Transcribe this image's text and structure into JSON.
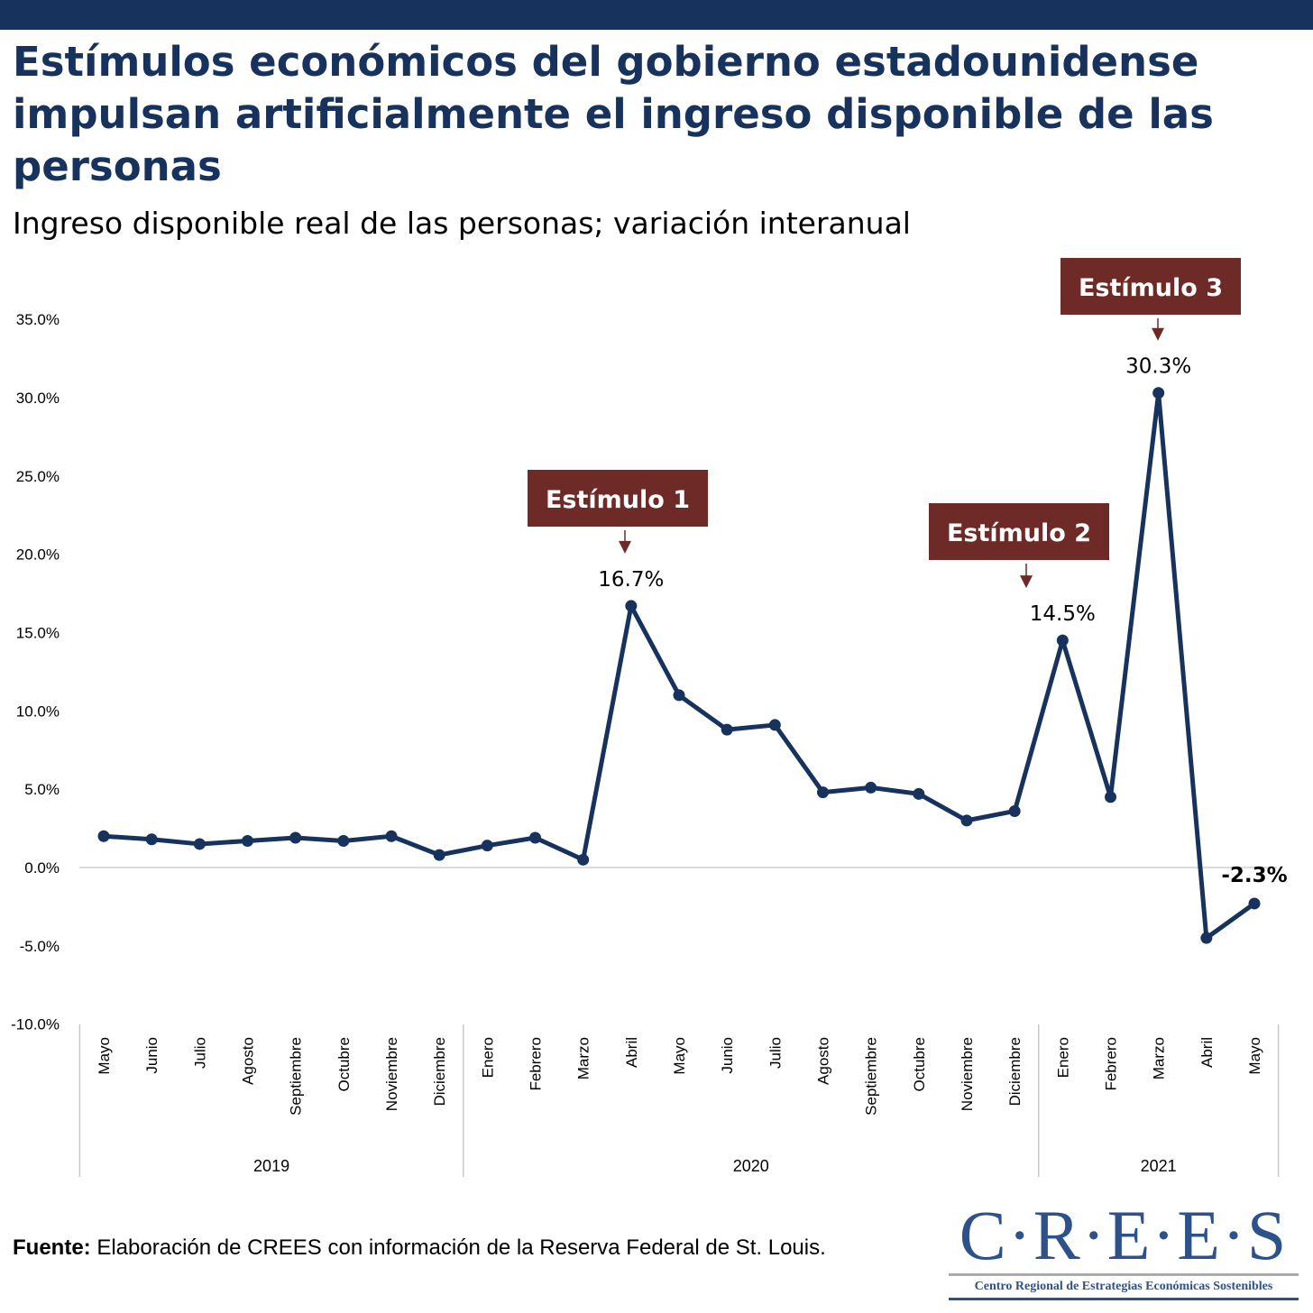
{
  "header": {
    "title": "Estímulos económicos del gobierno estadounidense impulsan artificialmente el ingreso disponible de las personas",
    "subtitle": "Ingreso disponible real de las personas; variación interanual"
  },
  "chart_data": {
    "type": "line",
    "title": "Estímulos económicos del gobierno estadounidense impulsan artificialmente el ingreso disponible de las personas",
    "subtitle": "Ingreso disponible real de las personas; variación interanual",
    "ylim": [
      -10,
      35
    ],
    "yticks": [
      "-10.0%",
      "-5.0%",
      "0.0%",
      "5.0%",
      "10.0%",
      "15.0%",
      "20.0%",
      "25.0%",
      "30.0%",
      "35.0%"
    ],
    "ytick_values": [
      -10,
      -5,
      0,
      5,
      10,
      15,
      20,
      25,
      30,
      35
    ],
    "categories": [
      "Mayo",
      "Junio",
      "Julio",
      "Agosto",
      "Septiembre",
      "Octubre",
      "Noviembre",
      "Diciembre",
      "Enero",
      "Febrero",
      "Marzo",
      "Abril",
      "Mayo",
      "Junio",
      "Julio",
      "Agosto",
      "Septiembre",
      "Octubre",
      "Noviembre",
      "Diciembre",
      "Enero",
      "Febrero",
      "Marzo",
      "Abril",
      "Mayo"
    ],
    "year_groups": [
      {
        "label": "2019",
        "start": 0,
        "end": 7
      },
      {
        "label": "2020",
        "start": 8,
        "end": 19
      },
      {
        "label": "2021",
        "start": 20,
        "end": 24
      }
    ],
    "series": [
      {
        "name": "Ingreso disponible real (variación interanual, %)",
        "color": "#17325c",
        "values": [
          2.0,
          1.8,
          1.5,
          1.7,
          1.9,
          1.7,
          2.0,
          0.8,
          1.4,
          1.9,
          0.5,
          16.7,
          11.0,
          8.8,
          9.1,
          4.8,
          5.1,
          4.7,
          3.0,
          3.6,
          14.5,
          4.5,
          30.3,
          -4.5,
          -2.3
        ]
      }
    ],
    "data_labels": [
      {
        "index": 11,
        "text": "16.7%",
        "bold": false
      },
      {
        "index": 20,
        "text": "14.5%",
        "bold": false
      },
      {
        "index": 22,
        "text": "30.3%",
        "bold": false
      },
      {
        "index": 24,
        "text": "-2.3%",
        "bold": true
      }
    ],
    "annotations": [
      {
        "index": 11,
        "text": "Estímulo 1"
      },
      {
        "index": 20,
        "text": "Estímulo 2"
      },
      {
        "index": 22,
        "text": "Estímulo 3"
      }
    ],
    "annotation_color": "#6e2a26"
  },
  "footer": {
    "source_label": "Fuente:",
    "source_text": " Elaboración de CREES con información de la Reserva Federal de St. Louis.",
    "logo_main": "C·R·E·E·S",
    "logo_sub": "Centro Regional de Estrategias Económicas Sostenibles"
  }
}
